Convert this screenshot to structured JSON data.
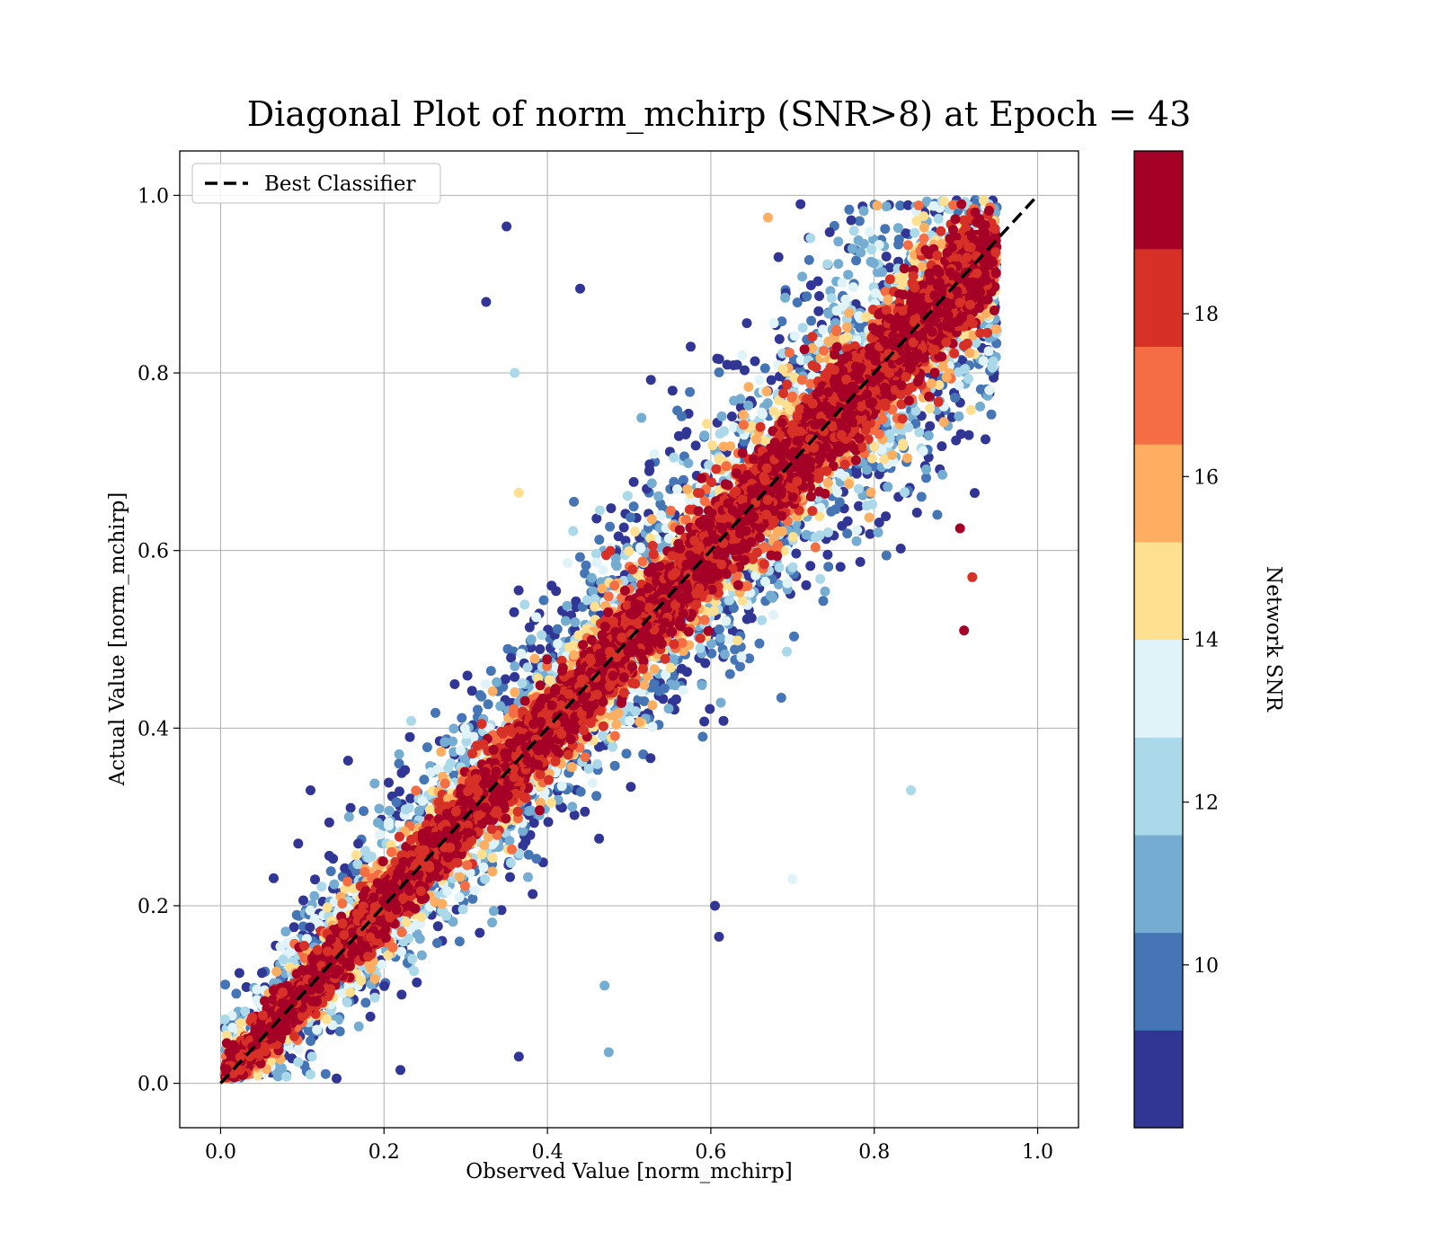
{
  "chart_data": {
    "type": "scatter",
    "title": "Diagonal Plot of norm_mchirp (SNR>8) at Epoch = 43",
    "xlabel": "Observed Value [norm_mchirp]",
    "ylabel": "Actual Value [norm_mchirp]",
    "xlim": [
      -0.05,
      1.05
    ],
    "ylim": [
      -0.05,
      1.05
    ],
    "xticks": [
      "0.0",
      "0.2",
      "0.4",
      "0.6",
      "0.8",
      "1.0"
    ],
    "yticks": [
      "0.0",
      "0.2",
      "0.4",
      "0.6",
      "0.8",
      "1.0"
    ],
    "grid": true,
    "legend": {
      "position": "top-left",
      "entries": [
        {
          "label": "Best Classifier",
          "style": "dashed",
          "color": "#000000"
        }
      ]
    },
    "reference_line": {
      "name": "Best Classifier",
      "x": [
        0.0,
        1.0
      ],
      "y": [
        0.0,
        1.0
      ]
    },
    "colorbar": {
      "label": "Network SNR",
      "range": [
        8,
        20
      ],
      "ticks": [
        "10",
        "12",
        "14",
        "16",
        "18"
      ],
      "tick_values": [
        10,
        12,
        14,
        16,
        18
      ],
      "colors": [
        "#313695",
        "#4575b4",
        "#74add1",
        "#abd9e9",
        "#e0f3f8",
        "#fee090",
        "#fdae61",
        "#f46d43",
        "#d73027",
        "#a50026"
      ]
    },
    "series": [
      {
        "name": "samples",
        "description_of_distribution": "points scattered around y = x; high-SNR (dark red) points tightly along the diagonal, lower-SNR (blue) points more spread",
        "points": [
          {
            "x": 0.35,
            "y": 0.965,
            "snr": 8.5
          },
          {
            "x": 0.325,
            "y": 0.88,
            "snr": 8.5
          },
          {
            "x": 0.44,
            "y": 0.895,
            "snr": 8.5
          },
          {
            "x": 0.36,
            "y": 0.8,
            "snr": 12.5
          },
          {
            "x": 0.365,
            "y": 0.665,
            "snr": 14.5
          },
          {
            "x": 0.11,
            "y": 0.33,
            "snr": 8.5
          },
          {
            "x": 0.095,
            "y": 0.27,
            "snr": 8.5
          },
          {
            "x": 0.67,
            "y": 0.975,
            "snr": 15.5
          },
          {
            "x": 0.91,
            "y": 0.51,
            "snr": 19.5
          },
          {
            "x": 0.905,
            "y": 0.625,
            "snr": 19.5
          },
          {
            "x": 0.92,
            "y": 0.57,
            "snr": 18.5
          },
          {
            "x": 0.845,
            "y": 0.33,
            "snr": 12.5
          },
          {
            "x": 0.7,
            "y": 0.23,
            "snr": 13.5
          },
          {
            "x": 0.475,
            "y": 0.035,
            "snr": 10.5
          },
          {
            "x": 0.365,
            "y": 0.03,
            "snr": 8.5
          },
          {
            "x": 0.22,
            "y": 0.015,
            "snr": 8.5
          },
          {
            "x": 0.11,
            "y": 0.01,
            "snr": 12.5
          },
          {
            "x": 0.605,
            "y": 0.2,
            "snr": 8.5
          },
          {
            "x": 0.61,
            "y": 0.165,
            "snr": 8.5
          },
          {
            "x": 0.47,
            "y": 0.11,
            "snr": 11.5
          }
        ]
      }
    ]
  }
}
